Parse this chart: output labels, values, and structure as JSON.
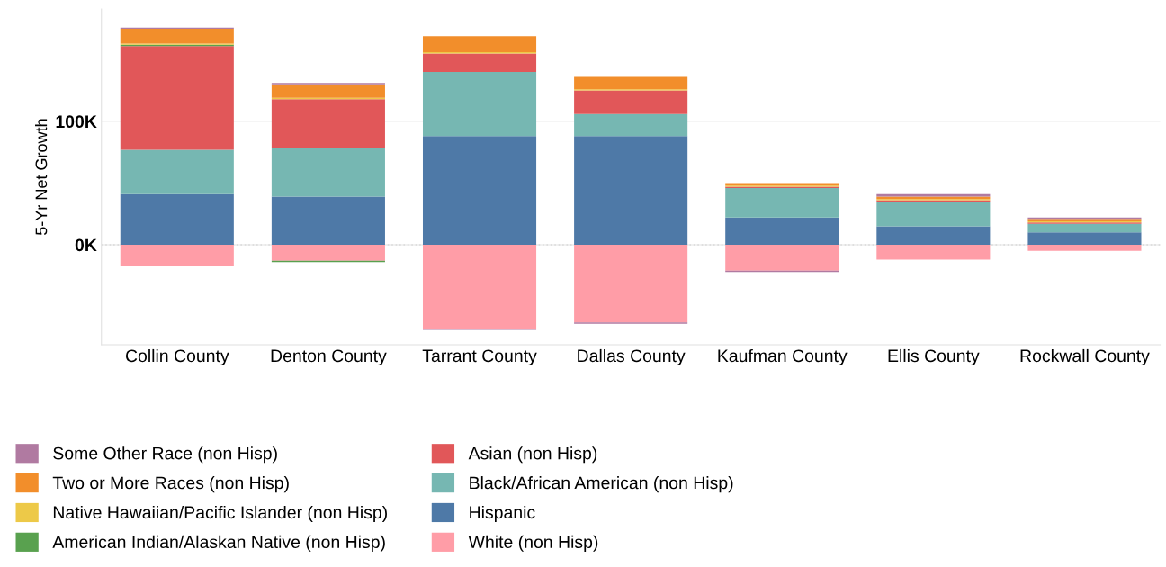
{
  "chart_data": {
    "type": "bar",
    "stacked": true,
    "ylabel": "5-Yr Net Growth",
    "categories": [
      "Collin County",
      "Denton County",
      "Tarrant County",
      "Dallas County",
      "Kaufman County",
      "Ellis County",
      "Rockwall County"
    ],
    "series": [
      {
        "name": "White (non Hisp)",
        "color": "#ff9da7",
        "values": [
          -17.5,
          -13,
          -68,
          -63,
          -21,
          -12,
          -5
        ]
      },
      {
        "name": "Hispanic",
        "color": "#4e79a7",
        "values": [
          41,
          39,
          88,
          88,
          22,
          15,
          10
        ]
      },
      {
        "name": "Black/African American (non Hisp)",
        "color": "#76b7b2",
        "values": [
          36,
          39,
          52,
          18,
          24,
          20,
          7
        ]
      },
      {
        "name": "Asian (non Hisp)",
        "color": "#e15759",
        "values": [
          84,
          40,
          15,
          19,
          1,
          1,
          1
        ]
      },
      {
        "name": "American Indian/Alaskan Native (non Hisp)",
        "color": "#59a14f",
        "values": [
          1,
          -1,
          0,
          0,
          0,
          0,
          0
        ]
      },
      {
        "name": "Native Hawaiian/Pacific Islander (non Hisp)",
        "color": "#edc948",
        "values": [
          1,
          1,
          1,
          1,
          1,
          1,
          1
        ]
      },
      {
        "name": "Two or More Races (non Hisp)",
        "color": "#f28e2b",
        "values": [
          12,
          11,
          13,
          10,
          2,
          2,
          2
        ]
      },
      {
        "name": "Some Other Race (non Hisp)",
        "color": "#b07aa1",
        "values": [
          1,
          1,
          -1,
          -1,
          -1,
          2,
          1
        ]
      }
    ],
    "ylim": [
      -81,
      191
    ],
    "yticks": [
      {
        "value": 0,
        "label": "0K"
      },
      {
        "value": 100,
        "label": "100K"
      }
    ],
    "grid": "y",
    "legend": "bottom",
    "ref_lines": [
      {
        "axis": "y",
        "value": 0,
        "color": "#a0a0a0",
        "line_style": "dotted"
      }
    ]
  }
}
